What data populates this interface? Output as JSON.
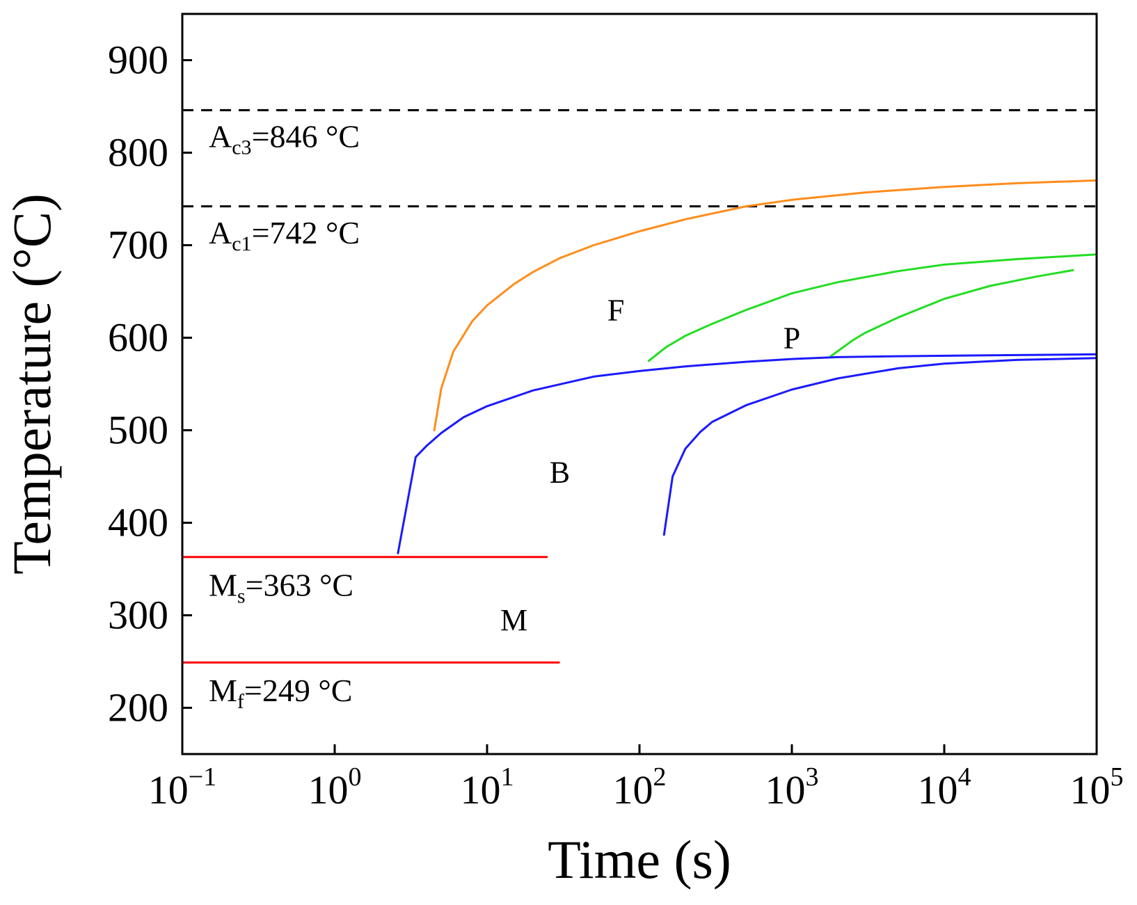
{
  "chart_data": {
    "type": "line",
    "title": "",
    "xlabel": "Time (s)",
    "ylabel": "Temperature (°C)",
    "xscale": "log",
    "xlim": [
      0.1,
      100000
    ],
    "ylim": [
      150,
      950
    ],
    "x_ticks": [
      {
        "value": 0.1,
        "base": "10",
        "exp": "−1"
      },
      {
        "value": 1,
        "base": "10",
        "exp": "0"
      },
      {
        "value": 10,
        "base": "10",
        "exp": "1"
      },
      {
        "value": 100,
        "base": "10",
        "exp": "2"
      },
      {
        "value": 1000,
        "base": "10",
        "exp": "3"
      },
      {
        "value": 10000,
        "base": "10",
        "exp": "4"
      },
      {
        "value": 100000,
        "base": "10",
        "exp": "5"
      }
    ],
    "y_ticks": [
      200,
      300,
      400,
      500,
      600,
      700,
      800,
      900
    ],
    "reference_lines": [
      {
        "name": "ac3-line",
        "y": 846,
        "xmax": 100000,
        "style": "dashed",
        "color": "#000000",
        "label": {
          "main": "A",
          "sub": "c3",
          "rest": "=846 °C",
          "x": 0.1,
          "y": 818
        }
      },
      {
        "name": "ac1-line",
        "y": 742,
        "xmax": 100000,
        "style": "dashed",
        "color": "#000000",
        "label": {
          "main": "A",
          "sub": "c1",
          "rest": "=742 °C",
          "x": 0.1,
          "y": 714
        }
      },
      {
        "name": "ms-line",
        "y": 363,
        "xmax": 25,
        "style": "solid",
        "color": "#ff0000",
        "label": {
          "main": "M",
          "sub": "s",
          "rest": "=363 °C",
          "x": 0.1,
          "y": 333
        }
      },
      {
        "name": "mf-line",
        "y": 249,
        "xmax": 30,
        "style": "solid",
        "color": "#ff0000",
        "label": {
          "main": "M",
          "sub": "f",
          "rest": "=249 °C",
          "x": 0.1,
          "y": 219
        }
      }
    ],
    "series": [
      {
        "name": "ferrite-start",
        "color": "#ff8c1a",
        "x": [
          4.5,
          5,
          6,
          8,
          10,
          15,
          20,
          30,
          50,
          100,
          200,
          500,
          1000,
          3000,
          10000,
          30000,
          100000
        ],
        "y": [
          500,
          545,
          585,
          618,
          635,
          658,
          671,
          686,
          700,
          715,
          728,
          742,
          749,
          757,
          763,
          767,
          770
        ]
      },
      {
        "name": "pearlite-start",
        "color": "#22dd22",
        "x": [
          115,
          150,
          200,
          300,
          500,
          1000,
          2000,
          5000,
          10000,
          30000,
          100000
        ],
        "y": [
          575,
          590,
          602,
          615,
          630,
          648,
          660,
          672,
          679,
          685,
          690
        ]
      },
      {
        "name": "pearlite-finish",
        "color": "#22dd22",
        "x": [
          1800,
          2500,
          3000,
          5000,
          10000,
          20000,
          40000,
          70000
        ],
        "y": [
          580,
          597,
          605,
          622,
          642,
          656,
          666,
          673
        ]
      },
      {
        "name": "bainite-start",
        "color": "#1a1aff",
        "x": [
          2.6,
          3.4,
          4,
          5,
          7,
          10,
          20,
          50,
          100,
          200,
          500,
          1000,
          2000,
          5000,
          20000,
          100000
        ],
        "y": [
          367,
          471,
          483,
          497,
          514,
          526,
          543,
          558,
          564,
          569,
          574,
          577,
          579,
          580,
          581,
          582
        ]
      },
      {
        "name": "bainite-finish",
        "color": "#1a1aff",
        "x": [
          145,
          165,
          200,
          250,
          300,
          500,
          1000,
          2000,
          5000,
          10000,
          30000,
          100000
        ],
        "y": [
          387,
          450,
          480,
          498,
          509,
          527,
          544,
          556,
          567,
          572,
          576,
          578
        ]
      }
    ],
    "regions": [
      {
        "label": "F",
        "x": 70,
        "y": 630
      },
      {
        "label": "P",
        "x": 1000,
        "y": 600
      },
      {
        "label": "B",
        "x": 30,
        "y": 455
      },
      {
        "label": "M",
        "x": 15,
        "y": 295
      }
    ]
  }
}
